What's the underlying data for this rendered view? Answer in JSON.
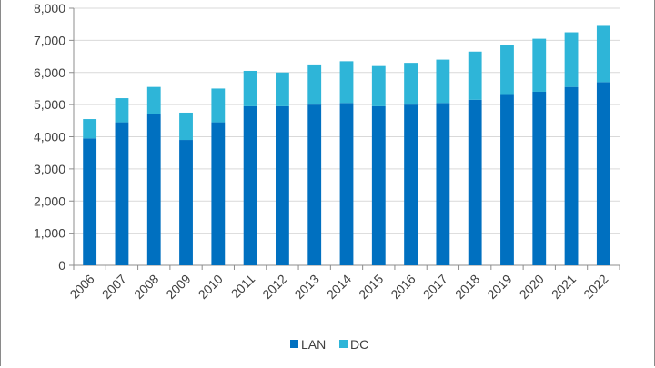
{
  "chart_data": {
    "type": "bar",
    "stacked": true,
    "categories": [
      "2006",
      "2007",
      "2008",
      "2009",
      "2010",
      "2011",
      "2012",
      "2013",
      "2014",
      "2015",
      "2016",
      "2017",
      "2018",
      "2019",
      "2020",
      "2021",
      "2022"
    ],
    "series": [
      {
        "name": "LAN",
        "color": "#0070C0",
        "values": [
          3950,
          4450,
          4700,
          3900,
          4450,
          4950,
          4950,
          5000,
          5050,
          4950,
          5000,
          5050,
          5150,
          5300,
          5400,
          5550,
          5700
        ]
      },
      {
        "name": "DC",
        "color": "#2EB5D8",
        "values": [
          600,
          750,
          850,
          850,
          1050,
          1100,
          1050,
          1250,
          1300,
          1250,
          1300,
          1350,
          1500,
          1550,
          1650,
          1700,
          1750
        ]
      }
    ],
    "ylim": [
      0,
      8000
    ],
    "yticks": [
      "0",
      "1,000",
      "2,000",
      "3,000",
      "4,000",
      "5,000",
      "6,000",
      "7,000",
      "8,000"
    ],
    "grid": true,
    "legend": "bottom"
  }
}
